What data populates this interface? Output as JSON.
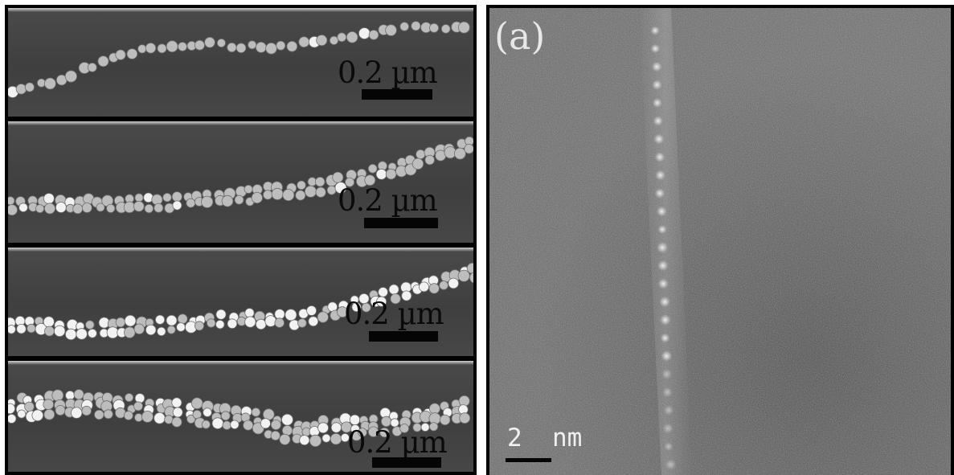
{
  "left_panel": {
    "strips": [
      {
        "scale_label": "0.2 µm"
      },
      {
        "scale_label": "0.2 µm"
      },
      {
        "scale_label": "0.2 µm"
      },
      {
        "scale_label": "0.2 µm"
      }
    ]
  },
  "right_panel": {
    "label": "(a)",
    "scale_label": "2  nm"
  },
  "colors": {
    "sem_background": "#444444",
    "particle": "#bdbdbd",
    "particle_bright": "#f2f2f2",
    "tem_background": "#6a6a6a",
    "scale_bar": "#050505"
  }
}
